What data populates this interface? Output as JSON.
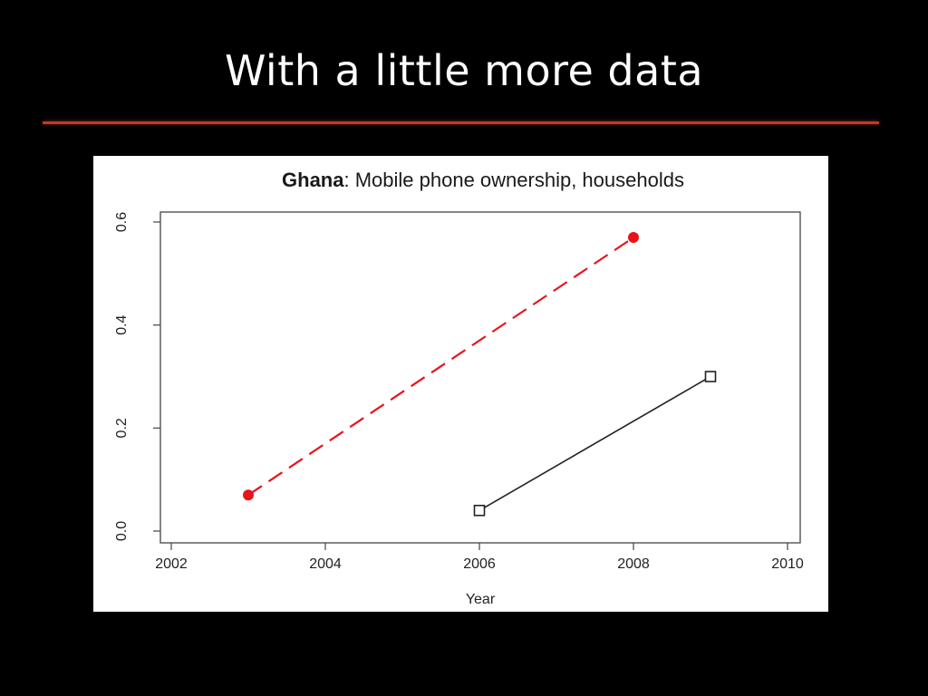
{
  "slide": {
    "title": "With a little more data"
  },
  "chart_data": {
    "type": "line",
    "title_bold": "Ghana",
    "title_rest": ": Mobile phone ownership, households",
    "xlabel": "Year",
    "ylabel": "",
    "xlim": [
      2002,
      2010
    ],
    "ylim": [
      0,
      0.6
    ],
    "x_ticks": [
      2002,
      2004,
      2006,
      2008,
      2010
    ],
    "y_ticks": [
      "0.0",
      "0.2",
      "0.4",
      "0.6"
    ],
    "grid": false,
    "series": [
      {
        "x": [
          2003,
          2008
        ],
        "y": [
          0.07,
          0.57
        ],
        "color": "#e8141b",
        "line": "dashed",
        "marker": "filled-circle"
      },
      {
        "x": [
          2006,
          2009
        ],
        "y": [
          0.04,
          0.3
        ],
        "color": "#222222",
        "line": "solid",
        "marker": "open-square"
      }
    ]
  }
}
